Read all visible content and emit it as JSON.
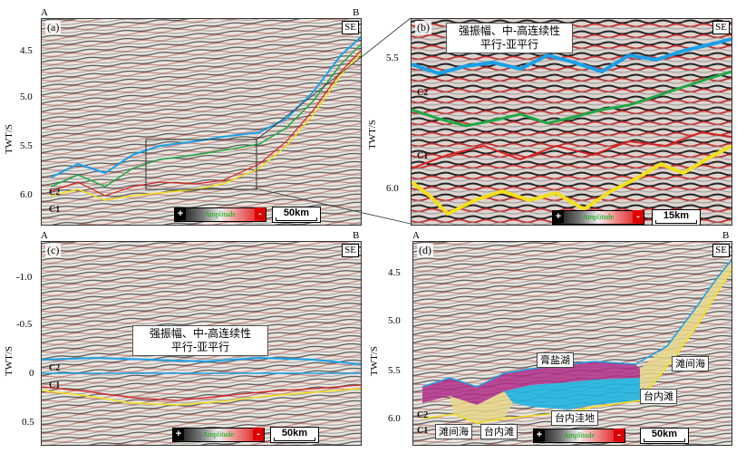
{
  "figure": {
    "corners": {
      "a": "A",
      "b": "B"
    },
    "se_label": "SE",
    "y_axis_label": "TWT/S",
    "amplitude_label": "Amplitude",
    "plus": "+",
    "minus": "-",
    "horizon_c1": "C1",
    "horizon_c2": "C2",
    "annotation_line1": "强振幅、中-高连续性",
    "annotation_line2": "平行-亚平行"
  },
  "panels": {
    "a": {
      "label": "(a)",
      "ticks": [
        "4.5",
        "5.0",
        "5.5",
        "6.0"
      ],
      "scale": "50km"
    },
    "b": {
      "label": "(b)",
      "ticks": [
        "5.5",
        "6.0"
      ],
      "scale": "15km"
    },
    "c": {
      "label": "(c)",
      "ticks": [
        "-1.0",
        "-0.5",
        "0",
        "0.5"
      ],
      "scale": "50km"
    },
    "d": {
      "label": "(d)",
      "ticks": [
        "4.5",
        "5.0",
        "5.5",
        "6.0"
      ],
      "scale": "50km",
      "facies": {
        "gypsum_lake": "膏盐湖",
        "inter_shoal_sea_right": "滩间海",
        "platform_shoal_right": "台内滩",
        "platform_depression": "台内洼地",
        "inter_shoal_sea_left": "滩间海",
        "platform_shoal_left": "台内滩"
      }
    }
  },
  "colors": {
    "blue_horizon": "#1aa0e8",
    "green_horizon": "#22a845",
    "yellow_horizon": "#f2e01a",
    "red_horizon": "#d82020",
    "gypsum": "#b0308a",
    "depression": "#20b4e0",
    "shoal": "#e8d88a"
  }
}
